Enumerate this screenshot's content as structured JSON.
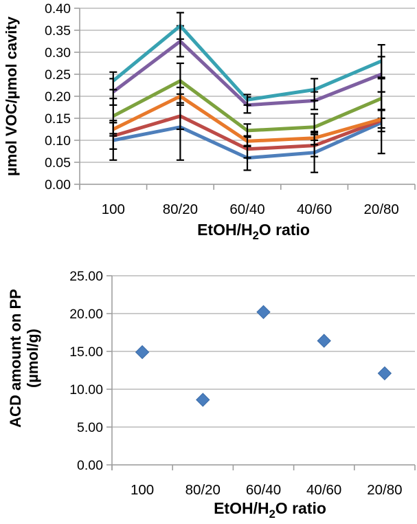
{
  "page": {
    "background": "#ffffff"
  },
  "style": {
    "gridline_color": "#acacac",
    "axis_color": "#9e9e9e",
    "error_bar_color": "#000000",
    "text_color": "#000000"
  },
  "chart_data": [
    {
      "id": "voc-uptake-line-chart",
      "type": "line",
      "categories": [
        "100",
        "80/20",
        "60/40",
        "40/60",
        "20/80"
      ],
      "xlabel": "EtOH/H2O ratio",
      "xlabel_parts": {
        "pre": "EtOH/H",
        "sub": "2",
        "post": "O ratio"
      },
      "ylabel": "µmol VOC/µmol cavity",
      "ylim": [
        0,
        0.4
      ],
      "ytick_labels": [
        "0.00",
        "0.05",
        "0.10",
        "0.15",
        "0.20",
        "0.25",
        "0.30",
        "0.35",
        "0.40"
      ],
      "grid": true,
      "legend": "none",
      "error_bars": true,
      "series": [
        {
          "name": "blue",
          "color": "#4e7fbb",
          "values": [
            0.1,
            0.13,
            0.06,
            0.072,
            0.14
          ],
          "errors": [
            0.045,
            0.075,
            0.028,
            0.045,
            0.07
          ]
        },
        {
          "name": "red",
          "color": "#bd4b47",
          "values": [
            0.11,
            0.155,
            0.08,
            0.088,
            0.145
          ],
          "errors": [
            0.03,
            0.03,
            0.02,
            0.025,
            0.025
          ]
        },
        {
          "name": "green",
          "color": "#7da23e",
          "values": [
            0.155,
            0.235,
            0.122,
            0.13,
            0.195
          ],
          "errors": [
            0.04,
            0.04,
            0.015,
            0.03,
            0.045
          ]
        },
        {
          "name": "purple",
          "color": "#7e5fa1",
          "values": [
            0.21,
            0.325,
            0.18,
            0.19,
            0.25
          ],
          "errors": [
            0.03,
            0.035,
            0.018,
            0.02,
            0.04
          ]
        },
        {
          "name": "teal",
          "color": "#38a2b2",
          "values": [
            0.235,
            0.36,
            0.192,
            0.215,
            0.28
          ],
          "errors": [
            0.02,
            0.03,
            0.012,
            0.025,
            0.037
          ]
        },
        {
          "name": "orange",
          "color": "#e8792b",
          "values": [
            0.125,
            0.2,
            0.098,
            0.105,
            0.148
          ],
          "errors": [
            0.015,
            0.02,
            0.012,
            0.015,
            0.02
          ]
        }
      ]
    },
    {
      "id": "acd-amount-scatter-chart",
      "type": "scatter",
      "categories": [
        "100",
        "80/20",
        "60/40",
        "40/60",
        "20/80"
      ],
      "xlabel": "EtOH/H2O ratio",
      "xlabel_parts": {
        "pre": "EtOH/H",
        "sub": "2",
        "post": "O ratio"
      },
      "ylabel": "ACD amount on PP (µmol/g)",
      "ylabel_lines": {
        "line1": "ACD amount on PP",
        "line2": "(µmol/g)"
      },
      "ylim": [
        0,
        25
      ],
      "ytick_labels": [
        "0.00",
        "5.00",
        "10.00",
        "15.00",
        "20.00",
        "25.00"
      ],
      "grid": true,
      "legend": "none",
      "marker": "diamond",
      "marker_color": "#4a7ebe",
      "marker_edge_color": "#3a6ba8",
      "values": [
        14.9,
        8.6,
        20.2,
        16.4,
        12.1
      ]
    }
  ]
}
